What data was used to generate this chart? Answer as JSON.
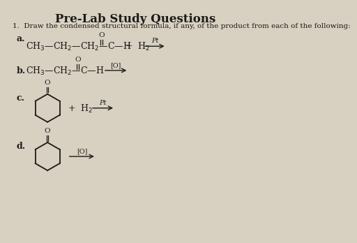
{
  "title": "Pre-Lab Study Questions",
  "question": "1.  Draw the condensed structural formula, if any, of the product from each of the following:",
  "bg_color": "#d8d0c0",
  "text_color": "#1a1a1a",
  "title_fontsize": 12,
  "body_fontsize": 9,
  "small_fontsize": 7.5
}
